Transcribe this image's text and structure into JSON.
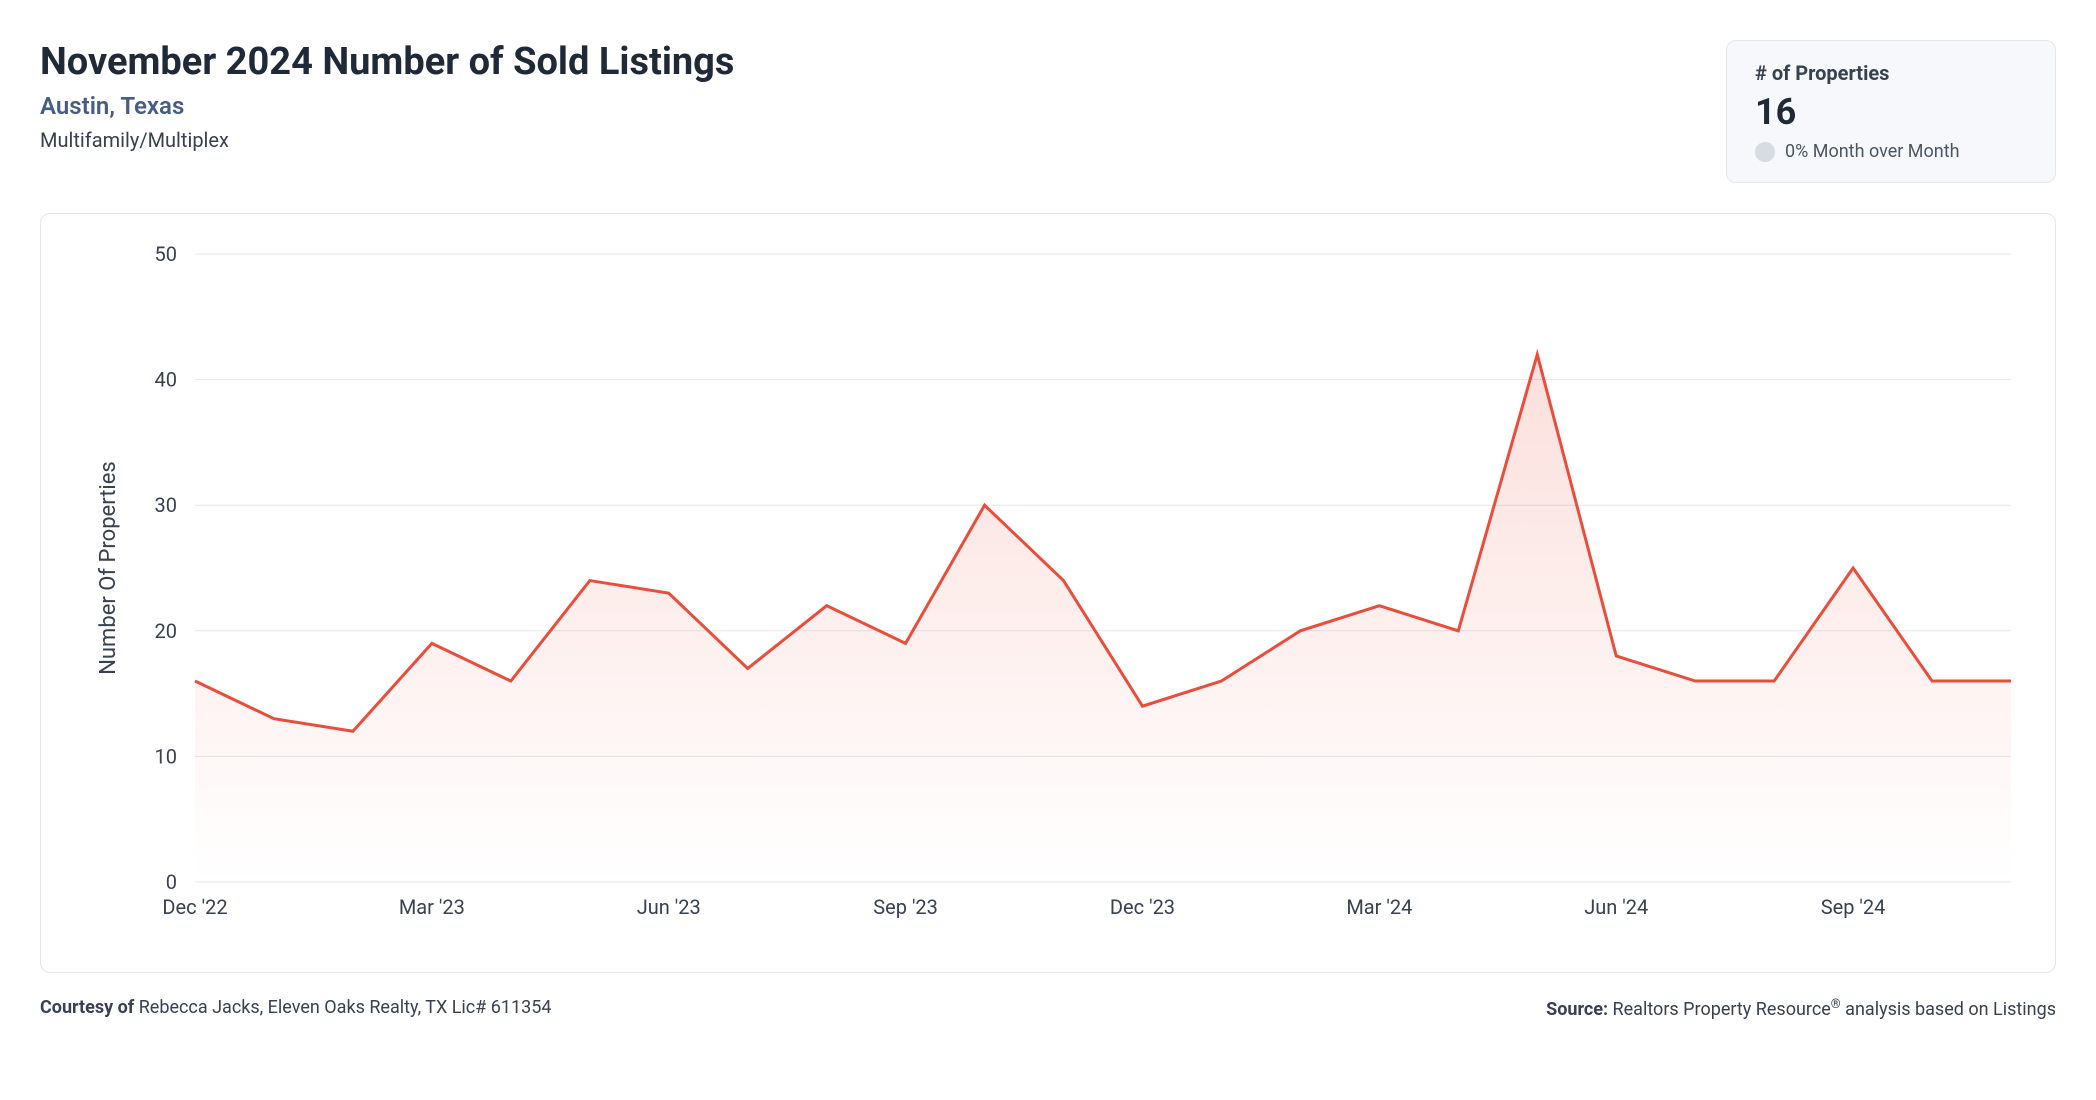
{
  "header": {
    "title": "November 2024 Number of Sold Listings",
    "location": "Austin, Texas",
    "property_type": "Multifamily/Multiplex"
  },
  "stat_card": {
    "label": "# of Properties",
    "value": "16",
    "change_text": "0% Month over Month",
    "dot_color": "#d7dbe2",
    "background": "#f6f8fb",
    "border_color": "#e5e7eb"
  },
  "chart": {
    "type": "area-line",
    "line_color": "#e94e3c",
    "area_gradient_top": "rgba(233,78,60,0.18)",
    "area_gradient_bottom": "rgba(233,78,60,0.0)",
    "background_color": "#ffffff",
    "grid_color": "#e5e7eb",
    "line_width": 3,
    "y_axis": {
      "title": "Number Of Properties",
      "min": 0,
      "max": 50,
      "tick_step": 10,
      "ticks": [
        0,
        10,
        20,
        30,
        40,
        50
      ],
      "label_fontsize": 20,
      "title_fontsize": 22
    },
    "x_axis": {
      "tick_labels": [
        "Dec '22",
        "Mar '23",
        "Jun '23",
        "Sep '23",
        "Dec '23",
        "Mar '24",
        "Jun '24",
        "Sep '24"
      ],
      "tick_indices": [
        0,
        3,
        6,
        9,
        12,
        15,
        18,
        21
      ],
      "label_fontsize": 20
    },
    "series": {
      "name": "Sold Listings",
      "months": [
        "Dec '22",
        "Jan '23",
        "Feb '23",
        "Mar '23",
        "Apr '23",
        "May '23",
        "Jun '23",
        "Jul '23",
        "Aug '23",
        "Sep '23",
        "Oct '23",
        "Nov '23",
        "Dec '23",
        "Jan '24",
        "Feb '24",
        "Mar '24",
        "Apr '24",
        "May '24",
        "Jun '24",
        "Jul '24",
        "Aug '24",
        "Sep '24",
        "Oct '24",
        "Nov '24"
      ],
      "values": [
        16,
        13,
        12,
        19,
        16,
        24,
        23,
        17,
        22,
        19,
        30,
        24,
        14,
        16,
        20,
        22,
        20,
        42,
        18,
        16,
        16,
        25,
        16,
        16
      ]
    }
  },
  "footer": {
    "courtesy_label": "Courtesy of",
    "courtesy_text": "Rebecca Jacks, Eleven Oaks Realty, TX Lic# 611354",
    "source_label": "Source:",
    "source_text": "Realtors Property Resource® analysis based on Listings"
  }
}
